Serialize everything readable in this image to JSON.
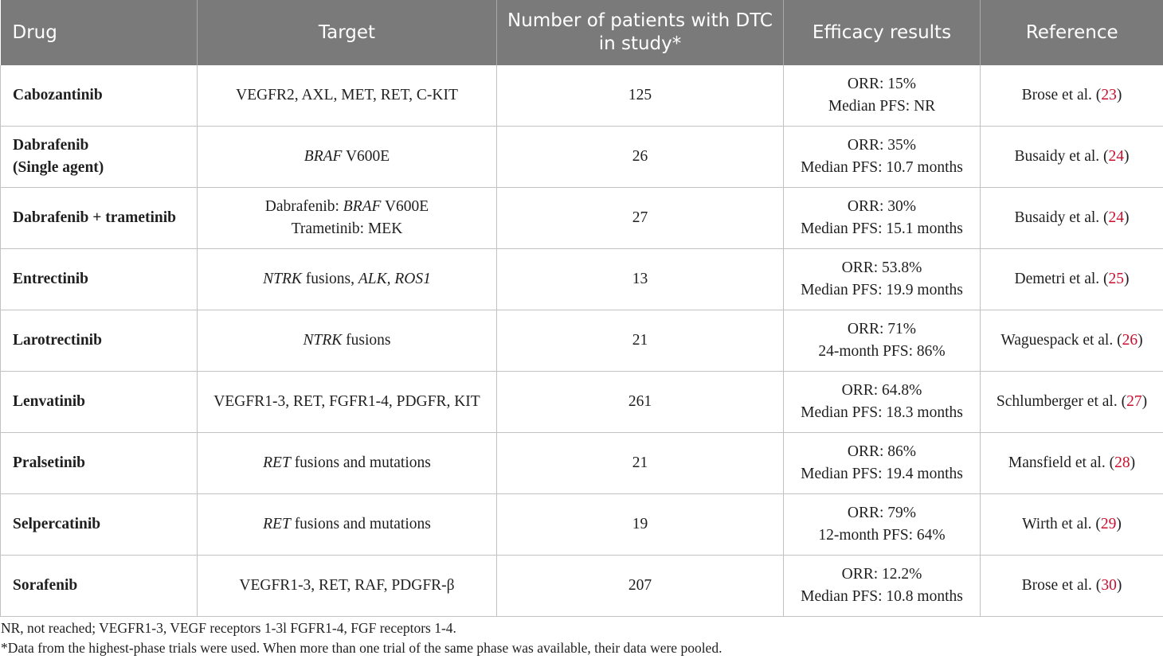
{
  "headers": [
    "Drug",
    "Target",
    "Number of patients with DTC in study*",
    "Efficacy results",
    "Reference"
  ],
  "rows": [
    {
      "drug": [
        "Cabozantinib"
      ],
      "target": [
        [
          {
            "t": "VEGFR2, AXL, MET, RET, C-KIT",
            "i": false
          }
        ]
      ],
      "patients": "125",
      "efficacy": [
        "ORR: 15%",
        "Median PFS: NR"
      ],
      "ref_author": "Brose et al. (",
      "ref_num": "23",
      "ref_close": ")"
    },
    {
      "drug": [
        "Dabrafenib",
        "(Single agent)"
      ],
      "target": [
        [
          {
            "t": "BRAF",
            "i": true
          },
          {
            "t": " V600E",
            "i": false
          }
        ]
      ],
      "patients": "26",
      "efficacy": [
        "ORR: 35%",
        "Median PFS: 10.7 months"
      ],
      "ref_author": "Busaidy et al. (",
      "ref_num": "24",
      "ref_close": ")"
    },
    {
      "drug": [
        "Dabrafenib + trametinib"
      ],
      "target": [
        [
          {
            "t": "Dabrafenib: ",
            "i": false
          },
          {
            "t": "BRAF",
            "i": true
          },
          {
            "t": " V600E",
            "i": false
          }
        ],
        [
          {
            "t": "Trametinib: MEK",
            "i": false
          }
        ]
      ],
      "patients": "27",
      "efficacy": [
        "ORR: 30%",
        "Median PFS: 15.1 months"
      ],
      "ref_author": "Busaidy et al. (",
      "ref_num": "24",
      "ref_close": ")"
    },
    {
      "drug": [
        "Entrectinib"
      ],
      "target": [
        [
          {
            "t": "NTRK",
            "i": true
          },
          {
            "t": " fusions, ",
            "i": false
          },
          {
            "t": "ALK, ROS1",
            "i": true
          }
        ]
      ],
      "patients": "13",
      "efficacy": [
        "ORR: 53.8%",
        "Median PFS: 19.9 months"
      ],
      "ref_author": "Demetri et al. (",
      "ref_num": "25",
      "ref_close": ")"
    },
    {
      "drug": [
        "Larotrectinib"
      ],
      "target": [
        [
          {
            "t": "NTRK",
            "i": true
          },
          {
            "t": " fusions",
            "i": false
          }
        ]
      ],
      "patients": "21",
      "efficacy": [
        "ORR: 71%",
        "24-month PFS: 86%"
      ],
      "ref_author": "Waguespack et al. (",
      "ref_num": "26",
      "ref_close": ")"
    },
    {
      "drug": [
        "Lenvatinib"
      ],
      "target": [
        [
          {
            "t": "VEGFR1-3, RET, FGFR1-4, PDGFR, KIT",
            "i": false
          }
        ]
      ],
      "patients": "261",
      "efficacy": [
        "ORR: 64.8%",
        "Median PFS: 18.3 months"
      ],
      "ref_author": "Schlumberger et al. (",
      "ref_num": "27",
      "ref_close": ")"
    },
    {
      "drug": [
        "Pralsetinib"
      ],
      "target": [
        [
          {
            "t": "RET",
            "i": true
          },
          {
            "t": " fusions and mutations",
            "i": false
          }
        ]
      ],
      "patients": "21",
      "efficacy": [
        "ORR: 86%",
        "Median PFS: 19.4 months"
      ],
      "ref_author": "Mansfield et al. (",
      "ref_num": "28",
      "ref_close": ")"
    },
    {
      "drug": [
        "Selpercatinib"
      ],
      "target": [
        [
          {
            "t": "RET",
            "i": true
          },
          {
            "t": " fusions and mutations",
            "i": false
          }
        ]
      ],
      "patients": "19",
      "efficacy": [
        "ORR: 79%",
        "12-month PFS: 64%"
      ],
      "ref_author": "Wirth et al. (",
      "ref_num": "29",
      "ref_close": ")"
    },
    {
      "drug": [
        "Sorafenib"
      ],
      "target": [
        [
          {
            "t": "VEGFR1-3, RET, RAF, PDGFR-β",
            "i": false
          }
        ]
      ],
      "patients": "207",
      "efficacy": [
        "ORR: 12.2%",
        "Median PFS: 10.8 months"
      ],
      "ref_author": "Brose et al. (",
      "ref_num": "30",
      "ref_close": ")"
    }
  ],
  "footnotes": [
    "NR, not reached; VEGFR1-3, VEGF receptors 1-3l FGFR1-4, FGF receptors 1-4.",
    "*Data from the highest-phase trials were used. When more than one trial of the same phase was available, their data were pooled."
  ],
  "colors": {
    "header_bg": "#7a7a7a",
    "header_text": "#ffffff",
    "ref_number": "#c8102e",
    "grid": "#c2c2c2"
  }
}
